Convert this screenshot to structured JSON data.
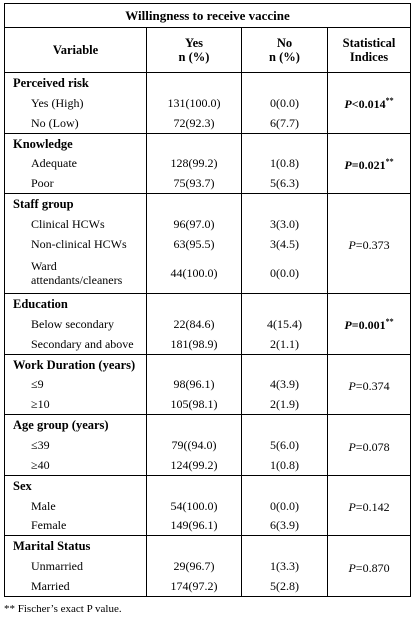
{
  "title": "Willingness to receive vaccine",
  "headers": {
    "variable": "Variable",
    "yes": "Yes",
    "yes_sub": "n (%)",
    "no": "No",
    "no_sub": "n (%)",
    "stat": "Statistical",
    "stat2": "Indices"
  },
  "groups": [
    {
      "name": "Perceived risk",
      "stat_p": "P",
      "stat_val": "<0.014",
      "stat_sup": "**",
      "bold": true,
      "rows": [
        {
          "label": "Yes (High)",
          "yes": "131(100.0)",
          "no": "0(0.0)"
        },
        {
          "label": "No (Low)",
          "yes": "72(92.3)",
          "no": "6(7.7)"
        }
      ]
    },
    {
      "name": "Knowledge",
      "stat_p": "P",
      "stat_val": "=0.021",
      "stat_sup": "**",
      "bold": true,
      "rows": [
        {
          "label": "Adequate",
          "yes": "128(99.2)",
          "no": "1(0.8)"
        },
        {
          "label": "Poor",
          "yes": "75(93.7)",
          "no": "5(6.3)"
        }
      ]
    },
    {
      "name": "Staff group",
      "stat_p": "P",
      "stat_val": "=0.373",
      "stat_sup": "",
      "bold": false,
      "rows": [
        {
          "label": "Clinical HCWs",
          "yes": "96(97.0)",
          "no": "3(3.0)"
        },
        {
          "label": "Non-clinical HCWs",
          "yes": "63(95.5)",
          "no": "3(4.5)"
        },
        {
          "label": "Ward attendants/cleaners",
          "yes": "44(100.0)",
          "no": "0(0.0)"
        }
      ]
    },
    {
      "name": "Education",
      "stat_p": "P",
      "stat_val": "=0.001",
      "stat_sup": "**",
      "bold": true,
      "rows": [
        {
          "label": "Below secondary",
          "yes": "22(84.6)",
          "no": "4(15.4)"
        },
        {
          "label": "Secondary and above",
          "yes": "181(98.9)",
          "no": "2(1.1)"
        }
      ]
    },
    {
      "name": "Work Duration (years)",
      "stat_p": "P",
      "stat_val": "=0.374",
      "stat_sup": "",
      "bold": false,
      "rows": [
        {
          "label": "≤9",
          "yes": "98(96.1)",
          "no": "4(3.9)"
        },
        {
          "label": "≥10",
          "yes": "105(98.1)",
          "no": "2(1.9)"
        }
      ]
    },
    {
      "name": "Age group (years)",
      "stat_p": "P",
      "stat_val": "=0.078",
      "stat_sup": "",
      "bold": false,
      "rows": [
        {
          "label": "≤39",
          "yes": "79((94.0)",
          "no": "5(6.0)"
        },
        {
          "label": "≥40",
          "yes": "124(99.2)",
          "no": "1(0.8)"
        }
      ]
    },
    {
      "name": "Sex",
      "stat_p": "P",
      "stat_val": "=0.142",
      "stat_sup": "",
      "bold": false,
      "rows": [
        {
          "label": "Male",
          "yes": "54(100.0)",
          "no": "0(0.0)"
        },
        {
          "label": "Female",
          "yes": "149(96.1)",
          "no": "6(3.9)"
        }
      ]
    },
    {
      "name": "Marital Status",
      "stat_p": "P",
      "stat_val": "=0.870",
      "stat_sup": "",
      "bold": false,
      "rows": [
        {
          "label": "Unmarried",
          "yes": "29(96.7)",
          "no": "1(3.3)"
        },
        {
          "label": "Married",
          "yes": "174(97.2)",
          "no": "5(2.8)"
        }
      ]
    }
  ],
  "footnote": "** Fischer’s exact P value."
}
